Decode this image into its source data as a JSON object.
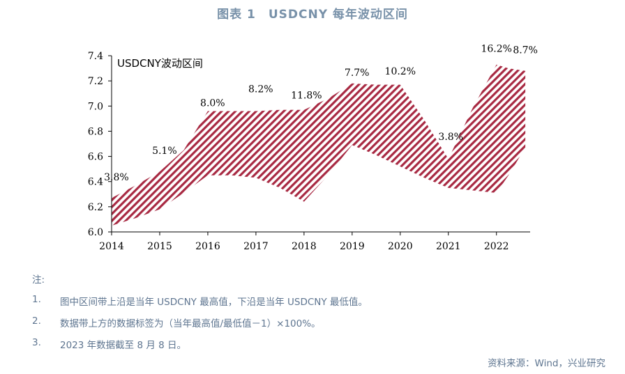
{
  "figure_title": "图表 1　USDCNY 每年波动区间",
  "chart_data": {
    "type": "area",
    "title": "USDCNY波动区间",
    "categories": [
      "2014",
      "2015",
      "2016",
      "2017",
      "2018",
      "2019",
      "2020",
      "2021",
      "2022"
    ],
    "x": [
      2014.0,
      2014.5,
      2015,
      2015.5,
      2016,
      2016.5,
      2017,
      2017.5,
      2018,
      2018.5,
      2019,
      2019.5,
      2020,
      2020.5,
      2021,
      2021.5,
      2022,
      2022.25,
      2022.6
    ],
    "upper": [
      6.27,
      6.37,
      6.48,
      6.65,
      6.96,
      6.96,
      6.96,
      6.97,
      6.97,
      7.06,
      7.18,
      7.17,
      7.17,
      6.89,
      6.58,
      6.98,
      7.33,
      7.3,
      7.28
    ],
    "lower": [
      6.05,
      6.11,
      6.18,
      6.31,
      6.45,
      6.45,
      6.43,
      6.35,
      6.24,
      6.45,
      6.69,
      6.61,
      6.52,
      6.43,
      6.35,
      6.33,
      6.31,
      6.45,
      6.67
    ],
    "ylim": [
      6.0,
      7.4
    ],
    "yticks": [
      "6.0",
      "6.2",
      "6.4",
      "6.6",
      "6.8",
      "7.0",
      "7.2",
      "7.4"
    ],
    "annotations": [
      {
        "x": 2014.1,
        "y": 6.41,
        "text": "3.8%"
      },
      {
        "x": 2015.1,
        "y": 6.62,
        "text": "5.1%"
      },
      {
        "x": 2016.1,
        "y": 7.0,
        "text": "8.0%"
      },
      {
        "x": 2017.1,
        "y": 7.11,
        "text": "8.2%"
      },
      {
        "x": 2018.05,
        "y": 7.06,
        "text": "11.8%"
      },
      {
        "x": 2019.1,
        "y": 7.24,
        "text": "7.7%"
      },
      {
        "x": 2020.0,
        "y": 7.25,
        "text": "10.2%"
      },
      {
        "x": 2021.05,
        "y": 6.73,
        "text": "3.8%"
      },
      {
        "x": 2022.0,
        "y": 7.43,
        "text": "16.2%"
      },
      {
        "x": 2022.6,
        "y": 7.42,
        "text": "8.7%"
      }
    ],
    "fill_color": "#a82942",
    "grid": false
  },
  "notes": {
    "label": "注:",
    "items": [
      {
        "num": "1.",
        "text": "图中区间带上沿是当年 USDCNY 最高值，下沿是当年 USDCNY 最低值。"
      },
      {
        "num": "2.",
        "text": "数据带上方的数据标签为（当年最高值/最低值－1）×100%。"
      },
      {
        "num": "3.",
        "text": "2023 年数据截至 8 月 8 日。"
      }
    ]
  },
  "source": "资料来源：Wind，兴业研究"
}
